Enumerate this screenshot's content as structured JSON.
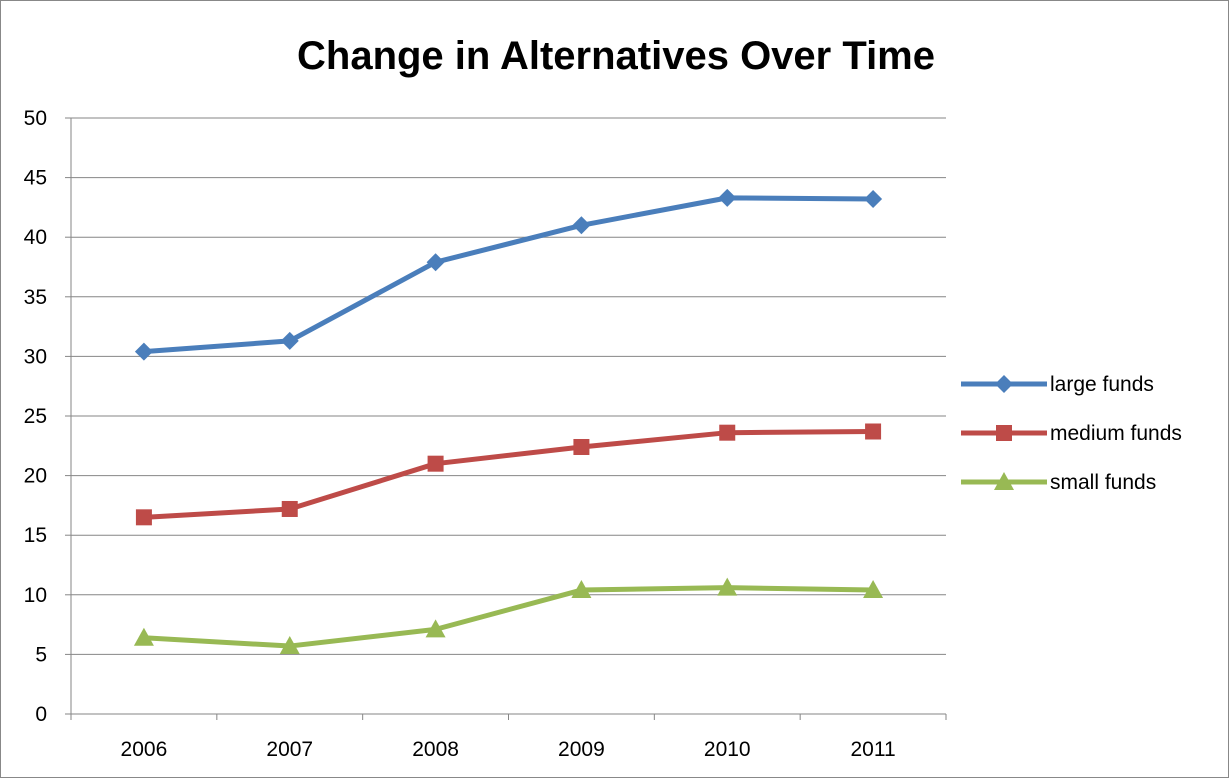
{
  "chart_data": {
    "type": "line",
    "title": "Change in Alternatives Over Time",
    "xlabel": "",
    "ylabel": "",
    "categories": [
      "2006",
      "2007",
      "2008",
      "2009",
      "2010",
      "2011"
    ],
    "ylim": [
      0,
      50
    ],
    "yticks": [
      0,
      5,
      10,
      15,
      20,
      25,
      30,
      35,
      40,
      45,
      50
    ],
    "grid": "horizontal",
    "legend_position": "right",
    "series": [
      {
        "name": "large funds",
        "color": "#4a7ebb",
        "marker": "diamond",
        "values": [
          30.4,
          31.3,
          37.9,
          41.0,
          43.3,
          43.2
        ]
      },
      {
        "name": "medium funds",
        "color": "#be4b48",
        "marker": "square",
        "values": [
          16.5,
          17.2,
          21.0,
          22.4,
          23.6,
          23.7
        ]
      },
      {
        "name": "small funds",
        "color": "#98b954",
        "marker": "triangle",
        "values": [
          6.4,
          5.7,
          7.1,
          10.4,
          10.6,
          10.4
        ]
      }
    ]
  }
}
